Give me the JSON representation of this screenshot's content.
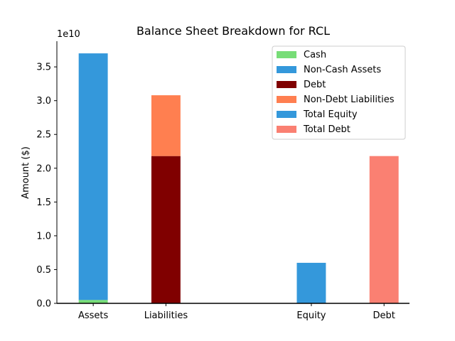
{
  "chart_data": {
    "type": "bar",
    "stacked": true,
    "title": "Balance Sheet Breakdown for RCL",
    "xlabel": "",
    "ylabel": "Amount ($)",
    "y_offset_text": "1e10",
    "ylim": [
      0,
      38800000000
    ],
    "y_ticks": [
      0,
      5000000000,
      10000000000,
      15000000000,
      20000000000,
      25000000000,
      30000000000,
      35000000000
    ],
    "y_tick_labels": [
      "0.0",
      "0.5",
      "1.0",
      "1.5",
      "2.0",
      "2.5",
      "3.0",
      "3.5"
    ],
    "categories": [
      "Assets",
      "Liabilities",
      "Equity",
      "Debt"
    ],
    "category_positions": [
      0,
      1,
      3,
      4
    ],
    "legend_position": "top-right",
    "grid": false,
    "series": [
      {
        "name": "Cash",
        "color": "#77dd77",
        "category": "Assets",
        "bottom": 0,
        "value": 500000000
      },
      {
        "name": "Non-Cash Assets",
        "color": "#3498db",
        "category": "Assets",
        "bottom": 500000000,
        "value": 36500000000
      },
      {
        "name": "Debt",
        "color": "#800000",
        "category": "Liabilities",
        "bottom": 0,
        "value": 21800000000
      },
      {
        "name": "Non-Debt Liabilities",
        "color": "#ff7f50",
        "category": "Liabilities",
        "bottom": 21800000000,
        "value": 9000000000
      },
      {
        "name": "Total Equity",
        "color": "#3498db",
        "category": "Equity",
        "bottom": 0,
        "value": 6000000000
      },
      {
        "name": "Total Debt",
        "color": "#fa8072",
        "category": "Debt",
        "bottom": 0,
        "value": 21800000000
      }
    ]
  }
}
